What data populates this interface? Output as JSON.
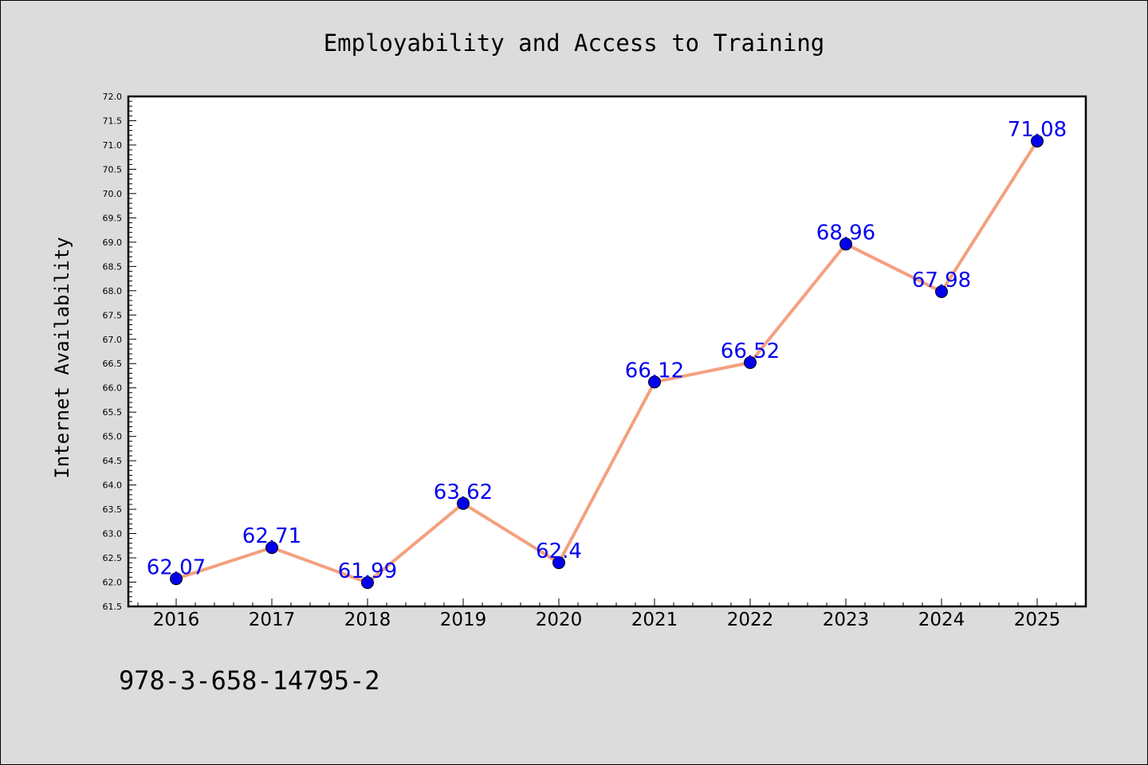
{
  "chart_data": {
    "type": "line",
    "title": "Employability and Access to Training",
    "xlabel": "",
    "ylabel": "Internet Availability",
    "x": [
      "2016",
      "2017",
      "2018",
      "2019",
      "2020",
      "2021",
      "2022",
      "2023",
      "2024",
      "2025"
    ],
    "series": [
      {
        "values": [
          62.07,
          62.71,
          61.99,
          63.62,
          62.4,
          66.12,
          66.52,
          68.96,
          67.98,
          71.08
        ]
      }
    ],
    "data_labels": [
      "62.07",
      "62.71",
      "61.99",
      "63.62",
      "62.4",
      "66.12",
      "66.52",
      "68.96",
      "67.98",
      "71.08"
    ],
    "ylim": [
      61.5,
      72.0
    ],
    "yticks": [
      "61.5",
      "62.0",
      "62.5",
      "63.0",
      "63.5",
      "64.0",
      "64.5",
      "65.0",
      "65.5",
      "66.0",
      "66.5",
      "67.0",
      "67.5",
      "68.0",
      "68.5",
      "69.0",
      "69.5",
      "70.0",
      "70.5",
      "71.0",
      "71.5",
      "72.0"
    ],
    "grid": false,
    "line_color": "#f4a07f",
    "marker_color": "#0000ee",
    "label_color": "#0000ee",
    "background": "#dcdcdc",
    "plot_background": "#ffffff"
  },
  "footer": {
    "isbn": "978-3-658-14795-2"
  }
}
